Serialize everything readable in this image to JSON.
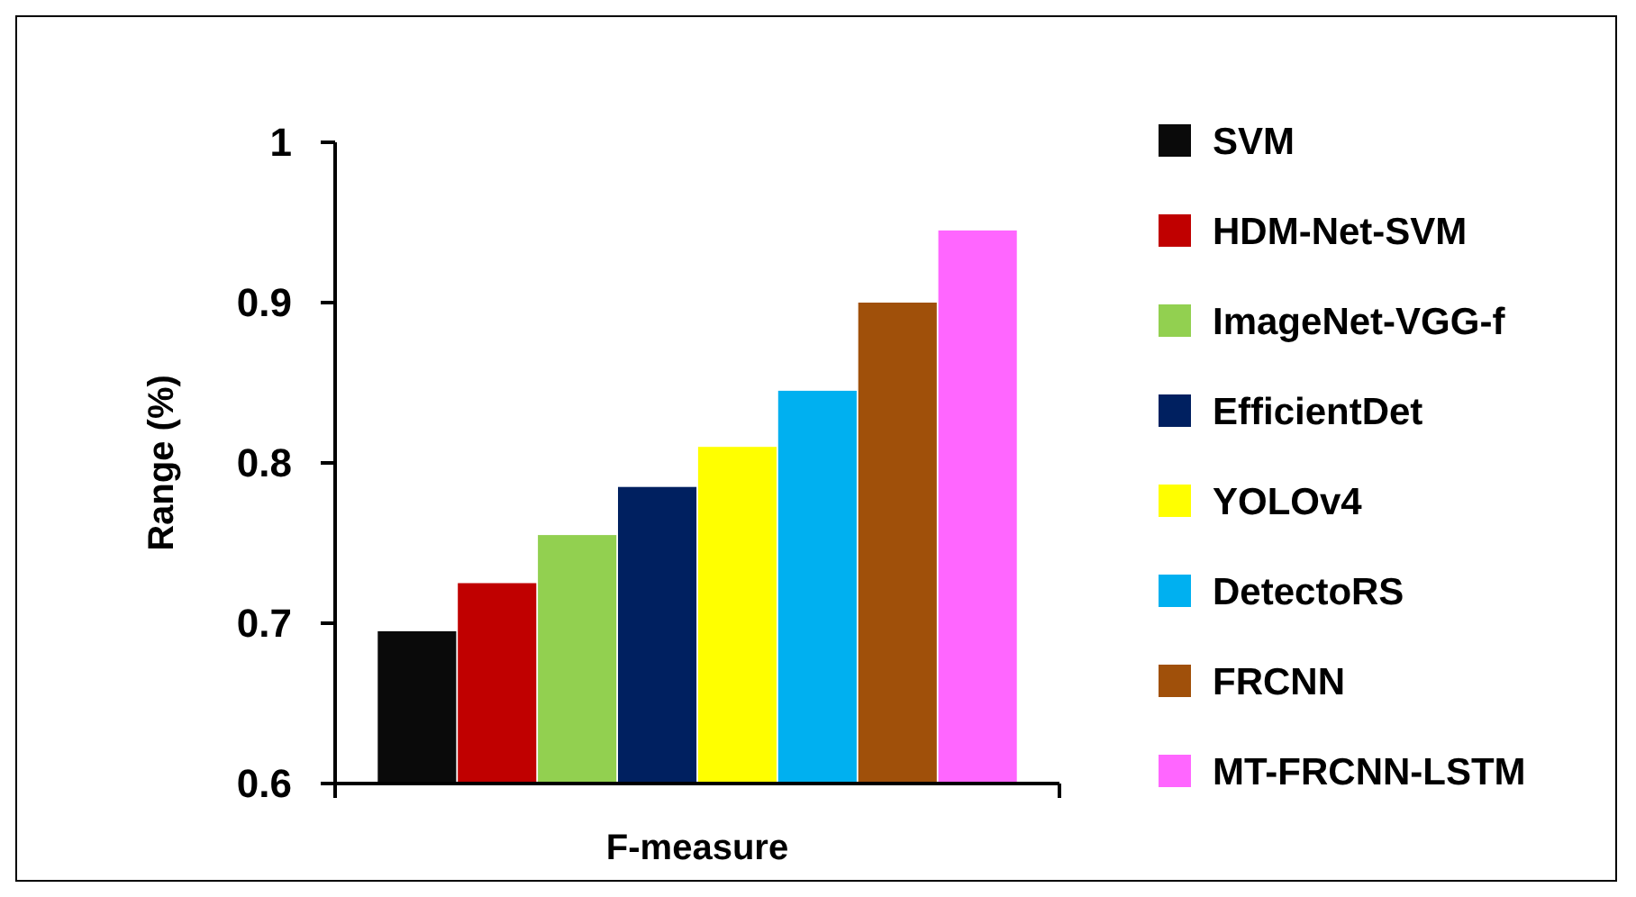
{
  "chart_data": {
    "type": "bar",
    "xlabel": "F-measure",
    "ylabel": "Range (%)",
    "categories": [
      null
    ],
    "series": [
      {
        "name": "SVM",
        "color": "#0a0a0a",
        "values": [
          0.695
        ]
      },
      {
        "name": "HDM-Net-SVM",
        "color": "#c00000",
        "values": [
          0.725
        ]
      },
      {
        "name": "ImageNet-VGG-f",
        "color": "#92d050",
        "values": [
          0.755
        ]
      },
      {
        "name": "EfficientDet",
        "color": "#002060",
        "values": [
          0.785
        ]
      },
      {
        "name": "YOLOv4",
        "color": "#ffff00",
        "values": [
          0.81
        ]
      },
      {
        "name": "DetectoRS",
        "color": "#00b0f0",
        "values": [
          0.845
        ]
      },
      {
        "name": "FRCNN",
        "color": "#a0500a",
        "values": [
          0.9
        ]
      },
      {
        "name": "MT-FRCNN-LSTM",
        "color": "#ff66ff",
        "values": [
          0.945
        ]
      }
    ],
    "ylim": [
      0.6,
      1
    ],
    "yticks": [
      0.6,
      0.7,
      0.8,
      0.9,
      {
        "value": 1,
        "label": "1"
      }
    ],
    "grid": false,
    "legend": "right"
  }
}
